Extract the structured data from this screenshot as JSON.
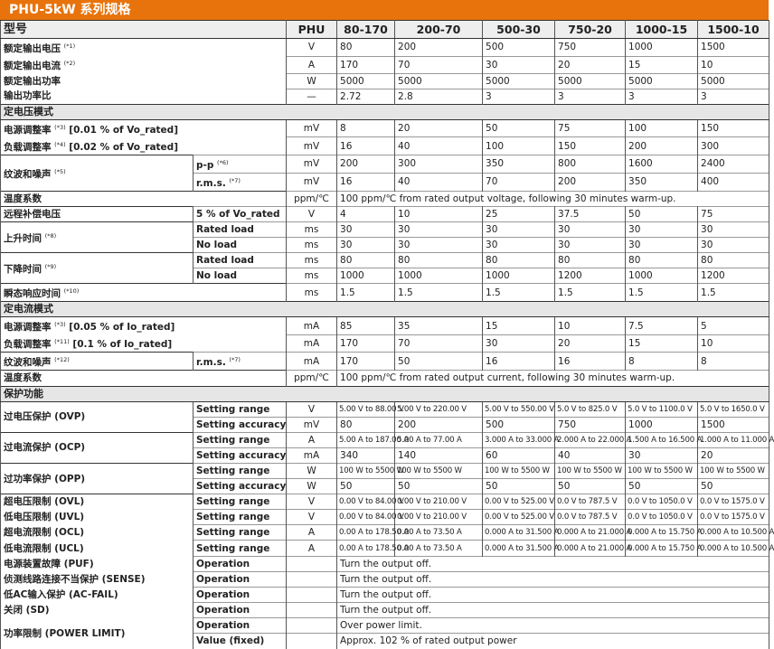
{
  "title": "PHU-5kW 系列规格",
  "header": {
    "label": "型号",
    "unit": "PHU",
    "models": [
      "80-170",
      "200-70",
      "500-30",
      "750-20",
      "1000-15",
      "1500-10"
    ]
  },
  "colors": {
    "title_bar": "#e8730c",
    "section_bg": "#e6e6e6"
  },
  "rows": [
    {
      "label": "额定输出电压",
      "note": "(*1)",
      "unit": "V",
      "values": [
        "80",
        "200",
        "500",
        "750",
        "1000",
        "1500"
      ],
      "grp": true
    },
    {
      "label": "额定输出电流",
      "note": "(*2)",
      "unit": "A",
      "values": [
        "170",
        "70",
        "30",
        "20",
        "15",
        "10"
      ],
      "cont": true
    },
    {
      "label": "额定输出功率",
      "unit": "W",
      "values": [
        "5000",
        "5000",
        "5000",
        "5000",
        "5000",
        "5000"
      ],
      "cont": true
    },
    {
      "label": "输出功率比",
      "unit": "—",
      "values": [
        "2.72",
        "2.8",
        "3",
        "3",
        "3",
        "3"
      ],
      "cont": true
    },
    {
      "section": "定电压模式"
    },
    {
      "label": "电源调整率",
      "note": "(*3)",
      "suffix": "[0.01 % of Vo_rated]",
      "unit": "mV",
      "values": [
        "8",
        "20",
        "50",
        "75",
        "100",
        "150"
      ],
      "grp": true
    },
    {
      "label": "负载调整率",
      "note": "(*4)",
      "suffix": "[0.02 % of Vo_rated]",
      "unit": "mV",
      "values": [
        "16",
        "40",
        "100",
        "150",
        "200",
        "300"
      ],
      "cont": true
    },
    {
      "label": "纹波和噪声",
      "note": "(*5)",
      "rowspan": 2,
      "sub": "p-p",
      "subnote": "(*6)",
      "unit": "mV",
      "values": [
        "200",
        "300",
        "350",
        "800",
        "1600",
        "2400"
      ],
      "grp": true
    },
    {
      "sub": "r.m.s.",
      "subnote": "(*7)",
      "unit": "mV",
      "values": [
        "16",
        "40",
        "70",
        "200",
        "350",
        "400"
      ]
    },
    {
      "label": "温度系数",
      "unit": "ppm/℃",
      "span": "100 ppm/℃ from rated output voltage, following 30 minutes warm-up.",
      "grp": true
    },
    {
      "label": "远程补偿电压",
      "sub": "5 % of Vo_rated",
      "unit": "V",
      "values": [
        "4",
        "10",
        "25",
        "37.5",
        "50",
        "75"
      ],
      "grp": true
    },
    {
      "label": "上升时间",
      "note": "(*8)",
      "rowspan": 2,
      "sub": "Rated load",
      "unit": "ms",
      "values": [
        "30",
        "30",
        "30",
        "30",
        "30",
        "30"
      ],
      "grp": true
    },
    {
      "sub": "No load",
      "unit": "ms",
      "values": [
        "30",
        "30",
        "30",
        "30",
        "30",
        "30"
      ]
    },
    {
      "label": "下降时间",
      "note": "(*9)",
      "rowspan": 2,
      "sub": "Rated load",
      "unit": "ms",
      "values": [
        "80",
        "80",
        "80",
        "80",
        "80",
        "80"
      ],
      "grp": true
    },
    {
      "sub": "No load",
      "unit": "ms",
      "values": [
        "1000",
        "1000",
        "1000",
        "1200",
        "1000",
        "1200"
      ]
    },
    {
      "label": "瞬态响应时间",
      "note": "(*10)",
      "unit": "ms",
      "values": [
        "1.5",
        "1.5",
        "1.5",
        "1.5",
        "1.5",
        "1.5"
      ],
      "grp": true
    },
    {
      "section": "定电流模式"
    },
    {
      "label": "电源调整率",
      "note": "(*3)",
      "suffix": "[0.05 % of Io_rated]",
      "unit": "mA",
      "values": [
        "85",
        "35",
        "15",
        "10",
        "7.5",
        "5"
      ],
      "grp": true
    },
    {
      "label": "负载调整率",
      "note": "(*11)",
      "suffix": "[0.1 % of Io_rated]",
      "unit": "mA",
      "values": [
        "170",
        "70",
        "30",
        "20",
        "15",
        "10"
      ],
      "cont": true
    },
    {
      "label": "纹波和噪声",
      "note": "(*12)",
      "sub": "r.m.s.",
      "subnote": "(*7)",
      "unit": "mA",
      "values": [
        "170",
        "50",
        "16",
        "16",
        "8",
        "8"
      ],
      "grp": true
    },
    {
      "label": "温度系数",
      "unit": "ppm/℃",
      "span": "100 ppm/℃ from rated output current, following 30 minutes warm-up.",
      "grp": true
    },
    {
      "section": "保护功能"
    },
    {
      "label": "过电压保护 (OVP)",
      "rowspan": 2,
      "sub": "Setting range",
      "unit": "V",
      "small": true,
      "values": [
        "5.00 V to 88.00 V",
        "5.00 V to 220.00 V",
        "5.00 V to 550.00 V",
        "5.0 V to 825.0 V",
        "5.0 V to 1100.0 V",
        "5.0 V to 1650.0 V"
      ],
      "grp": true
    },
    {
      "sub": "Setting accuracy",
      "unit": "mV",
      "values": [
        "80",
        "200",
        "500",
        "750",
        "1000",
        "1500"
      ]
    },
    {
      "label": "过电流保护 (OCP)",
      "rowspan": 2,
      "sub": "Setting range",
      "unit": "A",
      "small": true,
      "values": [
        "5.00 A to 187.00 A",
        "5.00 A to 77.00 A",
        "3.000 A to 33.000 A",
        "2.000 A to 22.000 A",
        "1.500 A to 16.500 A",
        "1.000 A to 11.000 A"
      ],
      "grp": true
    },
    {
      "sub": "Setting accuracy",
      "unit": "mA",
      "values": [
        "340",
        "140",
        "60",
        "40",
        "30",
        "20"
      ]
    },
    {
      "label": "过功率保护 (OPP)",
      "rowspan": 2,
      "sub": "Setting range",
      "unit": "W",
      "small": true,
      "values": [
        "100 W to 5500 W",
        "100 W to 5500 W",
        "100 W to 5500 W",
        "100 W to 5500 W",
        "100 W to 5500 W",
        "100 W to 5500 W"
      ],
      "grp": true
    },
    {
      "sub": "Setting accuracy",
      "unit": "W",
      "values": [
        "50",
        "50",
        "50",
        "50",
        "50",
        "50"
      ]
    },
    {
      "label": "超电压限制 (OVL)",
      "sub": "Setting range",
      "unit": "V",
      "small": true,
      "values": [
        "0.00 V to 84.00 V",
        "0.00 V to 210.00 V",
        "0.00 V to 525.00 V",
        "0.0 V to 787.5 V",
        "0.0 V to 1050.0 V",
        "0.0 V to 1575.0 V"
      ],
      "grp": true
    },
    {
      "label": "低电压限制 (UVL)",
      "sub": "Setting range",
      "unit": "V",
      "small": true,
      "values": [
        "0.00 V to 84.00 V",
        "0.00 V to 210.00 V",
        "0.00 V to 525.00 V",
        "0.0 V to 787.5 V",
        "0.0 V to 1050.0 V",
        "0.0 V to 1575.0 V"
      ],
      "cont": true
    },
    {
      "label": "超电流限制 (OCL)",
      "sub": "Setting range",
      "unit": "A",
      "small": true,
      "values": [
        "0.00 A to 178.50 A",
        "0.00 A to 73.50 A",
        "0.000 A to 31.500 A",
        "0.000 A to 21.000 A",
        "0.000 A to 15.750 A",
        "0.000 A to 10.500 A"
      ],
      "cont": true
    },
    {
      "label": "低电流限制 (UCL)",
      "sub": "Setting range",
      "unit": "A",
      "small": true,
      "values": [
        "0.00 A to 178.50 A",
        "0.00 A to 73.50 A",
        "0.000 A to 31.500 A",
        "0.000 A to 21.000 A",
        "0.000 A to 15.750 A",
        "0.000 A to 10.500 A"
      ],
      "cont": true
    },
    {
      "label": "电源装置故障 (PUF)",
      "sub": "Operation",
      "unit": "",
      "span": "Turn the output off.",
      "cont": true
    },
    {
      "label": "侦测线路连接不当保护 (SENSE)",
      "sub": "Operation",
      "unit": "",
      "span": "Turn the output off.",
      "cont": true
    },
    {
      "label": "低AC输入保护 (AC-FAIL)",
      "sub": "Operation",
      "unit": "",
      "span": "Turn the output off.",
      "cont": true
    },
    {
      "label": "关闭 (SD)",
      "sub": "Operation",
      "unit": "",
      "span": "Turn the output off.",
      "cont": true
    },
    {
      "label": "功率限制 (POWER LIMIT)",
      "rowspan": 2,
      "sub": "Operation",
      "unit": "",
      "span": "Over power limit.",
      "cont": true
    },
    {
      "sub": "Value (fixed)",
      "unit": "",
      "span": "Approx. 102 % of rated output power"
    }
  ]
}
